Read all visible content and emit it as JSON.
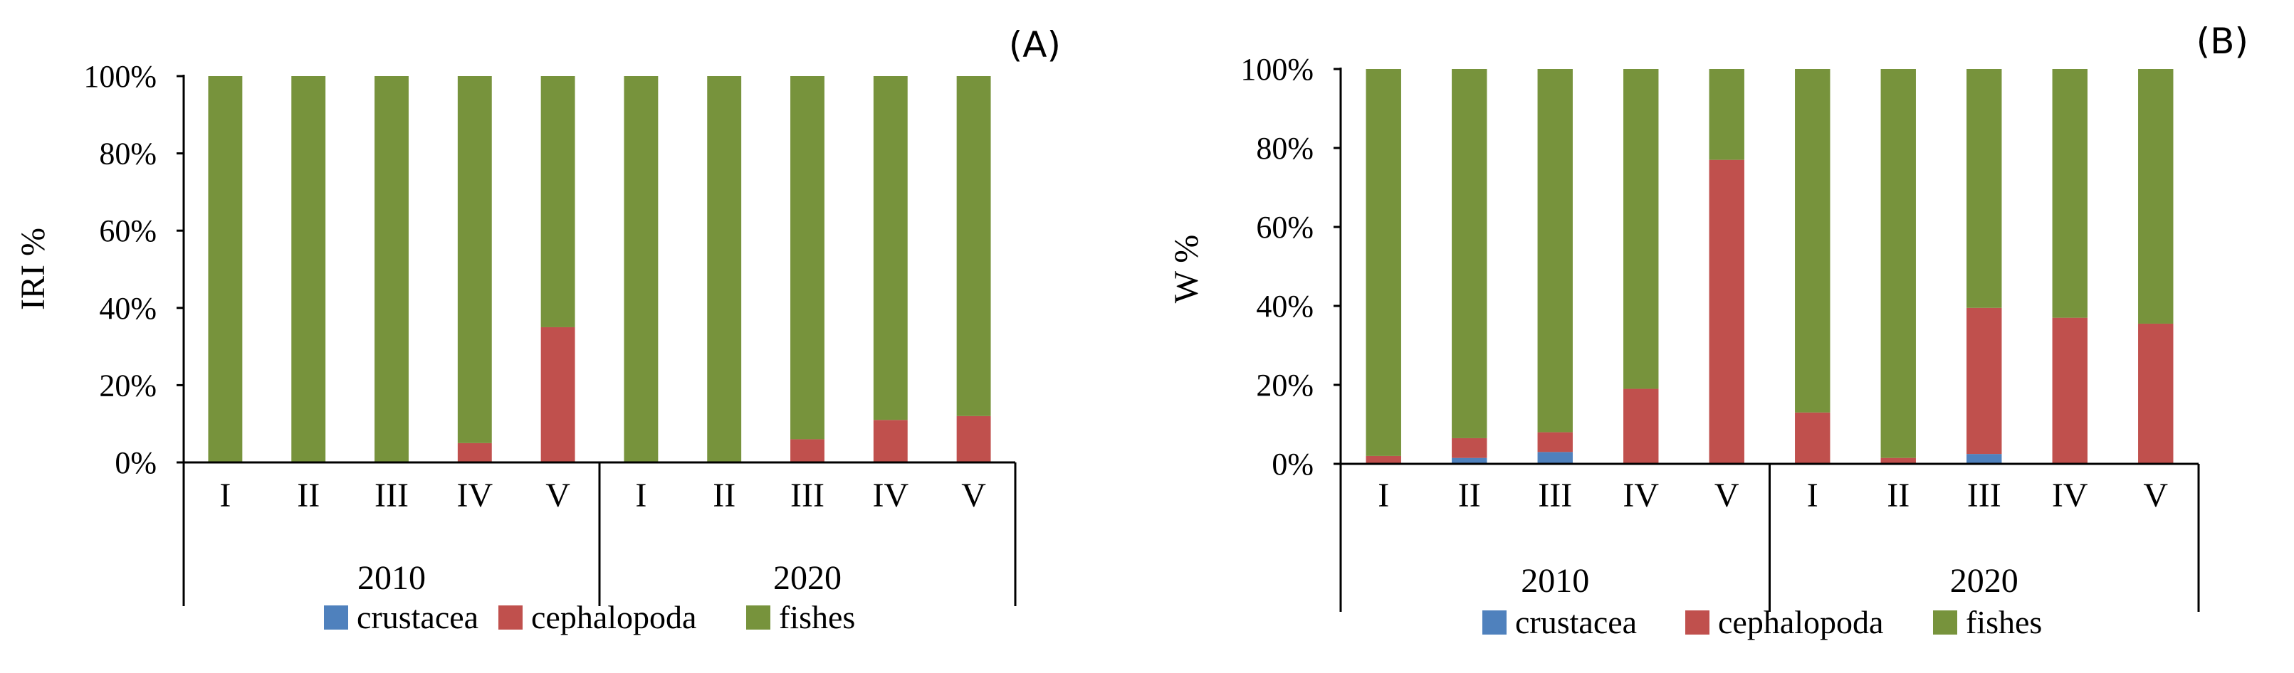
{
  "chart_data": [
    {
      "type": "bar",
      "stacked": true,
      "percent": true,
      "panel_label": "(A)",
      "ylabel": "IRI %",
      "ylim": [
        0,
        100
      ],
      "yticks": [
        "0%",
        "20%",
        "40%",
        "60%",
        "80%",
        "100%"
      ],
      "categories": [
        "I",
        "II",
        "III",
        "IV",
        "V",
        "I",
        "II",
        "III",
        "IV",
        "V"
      ],
      "groups": [
        {
          "label": "2010",
          "count": 5
        },
        {
          "label": "2020",
          "count": 5
        }
      ],
      "series": [
        {
          "name": "crustacea",
          "color": "#4F81BD",
          "values": [
            0,
            0,
            0,
            0,
            0,
            0,
            0,
            0,
            0,
            0
          ]
        },
        {
          "name": "cephalopoda",
          "color": "#C0504D",
          "values": [
            0,
            0,
            0,
            5,
            35,
            0,
            0,
            6,
            11,
            12
          ]
        },
        {
          "name": "fishes",
          "color": "#77933C",
          "values": [
            100,
            100,
            100,
            95,
            65,
            100,
            100,
            94,
            89,
            88
          ]
        }
      ]
    },
    {
      "type": "bar",
      "stacked": true,
      "percent": true,
      "panel_label": "(B)",
      "ylabel": "W %",
      "ylim": [
        0,
        100
      ],
      "yticks": [
        "0%",
        "20%",
        "40%",
        "60%",
        "80%",
        "100%"
      ],
      "categories": [
        "I",
        "II",
        "III",
        "IV",
        "V",
        "I",
        "II",
        "III",
        "IV",
        "V"
      ],
      "groups": [
        {
          "label": "2010",
          "count": 5
        },
        {
          "label": "2020",
          "count": 5
        }
      ],
      "series": [
        {
          "name": "crustacea",
          "color": "#4F81BD",
          "values": [
            0,
            1.5,
            3,
            0,
            0,
            0,
            0,
            2.5,
            0,
            0
          ]
        },
        {
          "name": "cephalopoda",
          "color": "#C0504D",
          "values": [
            2,
            5,
            5,
            19,
            77,
            13,
            1.5,
            37,
            37,
            35.5
          ]
        },
        {
          "name": "fishes",
          "color": "#77933C",
          "values": [
            98,
            93.5,
            92,
            81,
            23,
            87,
            98.5,
            60.5,
            63,
            64.5
          ]
        }
      ]
    }
  ]
}
